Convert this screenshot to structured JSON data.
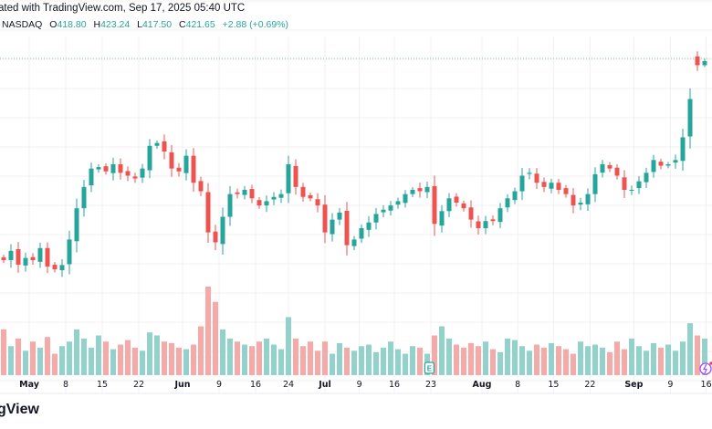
{
  "header": {
    "attribution": "ated with TradingView.com, Sep 17, 2025 05:40 UTC",
    "exchange": "NASDAQ",
    "open_label": "O",
    "open": "418.80",
    "high_label": "H",
    "high": "423.24",
    "low_label": "L",
    "low": "417.50",
    "close_label": "C",
    "close": "421.65",
    "change": "+2.88 (+0.69%)"
  },
  "footer": {
    "logo_text": "gView"
  },
  "markers": {
    "earnings": "E"
  },
  "colors": {
    "up": "#26a69a",
    "down": "#ef5350",
    "up_volume": "#92d2cc",
    "down_volume": "#f7a9a7",
    "grid": "#f3eff2",
    "price_line": "#26a69a"
  },
  "chart_data": {
    "type": "candlestick",
    "title": "",
    "x_tick_labels": [
      {
        "label": "May",
        "bold": true,
        "index": 3.5
      },
      {
        "label": "8",
        "index": 8.5
      },
      {
        "label": "15",
        "index": 13.5
      },
      {
        "label": "22",
        "index": 18.5
      },
      {
        "label": "Jun",
        "bold": true,
        "index": 24.5
      },
      {
        "label": "9",
        "index": 29.5
      },
      {
        "label": "16",
        "index": 34.5
      },
      {
        "label": "24",
        "index": 39
      },
      {
        "label": "Jul",
        "bold": true,
        "index": 44
      },
      {
        "label": "9",
        "index": 48.7
      },
      {
        "label": "16",
        "index": 53.5
      },
      {
        "label": "23",
        "index": 58.5
      },
      {
        "label": "Aug",
        "bold": true,
        "index": 65.5
      },
      {
        "label": "8",
        "index": 70.4
      },
      {
        "label": "15",
        "index": 75.3
      },
      {
        "label": "22",
        "index": 80.3
      },
      {
        "label": "Sep",
        "bold": true,
        "index": 86.3
      },
      {
        "label": "9",
        "index": 91.3
      },
      {
        "label": "16",
        "index": 96.2
      }
    ],
    "ylim": [
      250,
      440
    ],
    "last_price": 421.65,
    "earnings_index": 58.3,
    "close": [
      281.5,
      288,
      278.3,
      283,
      281.5,
      290,
      277,
      275,
      278,
      296,
      318,
      333,
      346,
      347,
      344,
      349,
      343,
      341,
      339,
      346,
      362,
      364,
      358,
      346,
      344,
      355,
      336,
      330,
      301,
      294,
      312,
      328,
      328,
      331,
      325,
      320,
      323,
      326,
      328,
      349,
      333,
      326,
      325,
      320,
      301,
      310,
      315,
      292,
      296,
      304,
      308,
      314,
      317,
      320,
      323,
      328,
      331,
      330,
      333,
      307,
      316,
      325,
      322,
      318,
      310,
      304,
      309,
      309,
      318,
      325,
      330,
      341,
      343,
      336,
      333,
      336,
      331,
      328,
      320,
      322,
      328,
      342,
      349,
      346,
      341,
      331,
      331,
      337,
      343,
      352,
      348,
      349,
      352,
      368,
      395,
      418.8,
      421.65
    ],
    "last_bar": {
      "open": 418.8,
      "high": 423.24,
      "low": 417.5,
      "close": 421.65
    },
    "volume_millions": [
      150,
      95,
      120,
      80,
      110,
      90,
      125,
      70,
      95,
      110,
      150,
      120,
      90,
      130,
      110,
      85,
      100,
      115,
      90,
      80,
      140,
      130,
      110,
      105,
      90,
      85,
      100,
      160,
      290,
      240,
      150,
      120,
      110,
      100,
      95,
      110,
      120,
      100,
      85,
      190,
      120,
      95,
      110,
      80,
      110,
      70,
      105,
      90,
      80,
      95,
      100,
      75,
      90,
      110,
      85,
      70,
      95,
      90,
      70,
      130,
      160,
      120,
      100,
      90,
      105,
      95,
      110,
      85,
      75,
      120,
      115,
      95,
      80,
      100,
      90,
      105,
      95,
      85,
      70,
      110,
      95,
      100,
      90,
      75,
      110,
      85,
      120,
      95,
      80,
      105,
      90,
      100,
      80,
      110,
      170,
      130,
      120
    ]
  }
}
